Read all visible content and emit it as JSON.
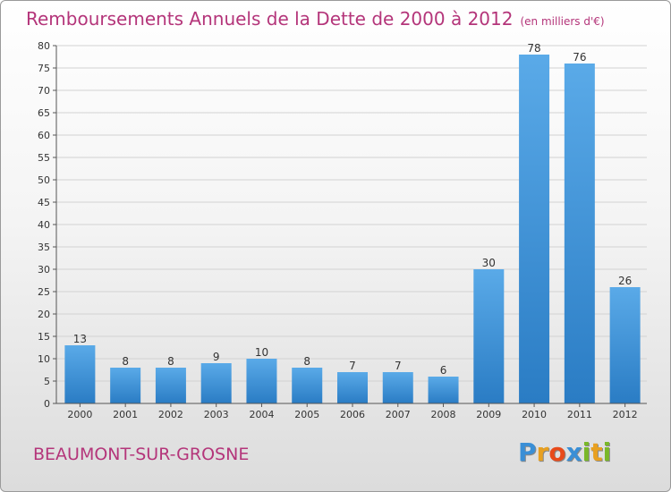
{
  "header": {
    "title": "Remboursements Annuels de la Dette de 2000 à 2012",
    "unit": "(en milliers d'€)"
  },
  "footer": {
    "commune": "BEAUMONT-SUR-GROSNE",
    "logo_letters": [
      "P",
      "r",
      "o",
      "x",
      "i",
      "t",
      "i"
    ],
    "logo_colors": [
      "#3a8fd6",
      "#e8a020",
      "#e84a1a",
      "#3a8fd6",
      "#7ab828",
      "#e8a020",
      "#7ab828"
    ]
  },
  "colors": {
    "title": "#b4357a",
    "bar_light": "#5aaae8",
    "bar_dark": "#2a7cc4"
  },
  "chart_data": {
    "type": "bar",
    "title": "Remboursements Annuels de la Dette de 2000 à 2012",
    "xlabel": "",
    "ylabel": "",
    "categories": [
      "2000",
      "2001",
      "2002",
      "2003",
      "2004",
      "2005",
      "2006",
      "2007",
      "2008",
      "2009",
      "2010",
      "2011",
      "2012"
    ],
    "values": [
      13,
      8,
      8,
      9,
      10,
      8,
      7,
      7,
      6,
      30,
      78,
      76,
      26
    ],
    "ylim": [
      0,
      80
    ],
    "yticks": [
      0,
      5,
      10,
      15,
      20,
      25,
      30,
      35,
      40,
      45,
      50,
      55,
      60,
      65,
      70,
      75,
      80
    ],
    "grid": true,
    "legend": "none"
  }
}
